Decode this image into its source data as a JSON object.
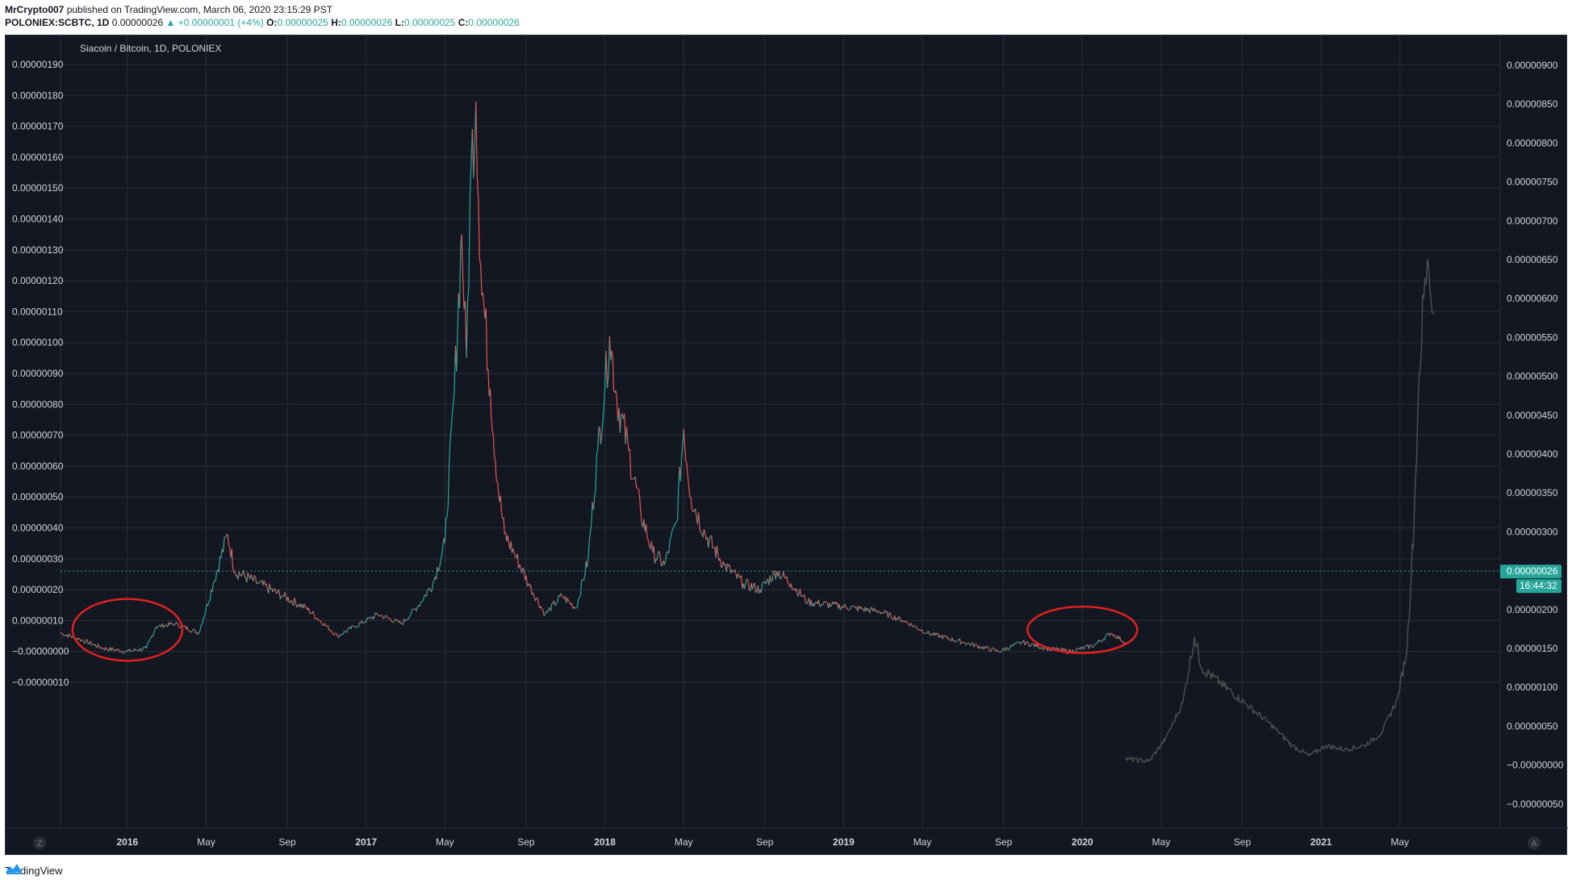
{
  "header": {
    "author": "MrCrypto007",
    "published": "published on TradingView.com, March 06, 2020 23:15:29 PST",
    "symbol": "POLONIEX:SCBTC, 1D",
    "last": "0.00000026",
    "change": "▲ +0.00000001 (+4%)",
    "o_label": "O:",
    "o_val": "0.00000025",
    "h_label": "H:",
    "h_val": "0.00000026",
    "l_label": "L:",
    "l_val": "0.00000025",
    "c_label": "C:",
    "c_val": "0.00000026"
  },
  "footer": {
    "brand": "TradingView",
    "logo_icon": "tradingview-logo-icon"
  },
  "corner_left": "Z",
  "corner_right": "A",
  "price_label": "0.00000026",
  "countdown_label": "16:44:32",
  "colors": {
    "bg": "#131722",
    "grid": "#2a2e39",
    "up": "#26a69a",
    "down": "#ef5350",
    "projection": "#4d4d4d",
    "circle": "#e0201e",
    "text": "#d1d4dc"
  },
  "chart_data": {
    "type": "line",
    "title": "Siacoin / Bitcoin, 1D, POLONIEX",
    "left_axis": {
      "ylim": [
        -1.5e-07,
        1.95e-06
      ],
      "ticks": [
        "0.00000190",
        "0.00000180",
        "0.00000170",
        "0.00000160",
        "0.00000150",
        "0.00000140",
        "0.00000130",
        "0.00000120",
        "0.00000110",
        "0.00000100",
        "0.00000090",
        "0.00000080",
        "0.00000070",
        "0.00000060",
        "0.00000050",
        "0.00000040",
        "0.00000030",
        "0.00000020",
        "0.00000010",
        "−0.00000000",
        "−0.00000010"
      ],
      "tick_values": [
        1.9,
        1.8,
        1.7,
        1.6,
        1.5,
        1.4,
        1.3,
        1.2,
        1.1,
        1.0,
        0.9,
        0.8,
        0.7,
        0.6,
        0.5,
        0.4,
        0.3,
        0.2,
        0.1,
        0.0,
        -0.1
      ]
    },
    "right_axis": {
      "ticks": [
        "0.00000900",
        "0.00000850",
        "0.00000800",
        "0.00000750",
        "0.00000700",
        "0.00000650",
        "0.00000600",
        "0.00000550",
        "0.00000500",
        "0.00000450",
        "0.00000400",
        "0.00000350",
        "0.00000300",
        "0.00000250",
        "0.00000200",
        "0.00000150",
        "0.00000100",
        "0.00000050",
        "−0.00000000",
        "−0.00000050"
      ],
      "tick_values": [
        9.0,
        8.5,
        8.0,
        7.5,
        7.0,
        6.5,
        6.0,
        5.5,
        5.0,
        4.5,
        4.0,
        3.5,
        3.0,
        2.5,
        2.0,
        1.5,
        1.0,
        0.5,
        0.0,
        -0.5
      ]
    },
    "x_axis": {
      "xlim": [
        2015.72,
        2021.75
      ],
      "labels": [
        {
          "text": "2016",
          "x": 2016.0,
          "year": true
        },
        {
          "text": "May",
          "x": 2016.33
        },
        {
          "text": "Sep",
          "x": 2016.67
        },
        {
          "text": "2017",
          "x": 2017.0,
          "year": true
        },
        {
          "text": "May",
          "x": 2017.33
        },
        {
          "text": "Sep",
          "x": 2017.67
        },
        {
          "text": "2018",
          "x": 2018.0,
          "year": true
        },
        {
          "text": "May",
          "x": 2018.33
        },
        {
          "text": "Sep",
          "x": 2018.67
        },
        {
          "text": "2019",
          "x": 2019.0,
          "year": true
        },
        {
          "text": "May",
          "x": 2019.33
        },
        {
          "text": "Sep",
          "x": 2019.67
        },
        {
          "text": "2020",
          "x": 2020.0,
          "year": true
        },
        {
          "text": "May",
          "x": 2020.33
        },
        {
          "text": "Sep",
          "x": 2020.67
        },
        {
          "text": "2021",
          "x": 2021.0,
          "year": true
        },
        {
          "text": "May",
          "x": 2021.33
        }
      ]
    },
    "current_price": 0.26,
    "series": [
      {
        "values_unit": "1e-6 BTC",
        "points": [
          [
            2015.72,
            0.06
          ],
          [
            2015.8,
            0.04
          ],
          [
            2015.9,
            0.01
          ],
          [
            2016.0,
            0.0
          ],
          [
            2016.08,
            0.01
          ],
          [
            2016.12,
            0.08
          ],
          [
            2016.2,
            0.09
          ],
          [
            2016.3,
            0.06
          ],
          [
            2016.36,
            0.22
          ],
          [
            2016.42,
            0.38
          ],
          [
            2016.45,
            0.26
          ],
          [
            2016.55,
            0.22
          ],
          [
            2016.65,
            0.18
          ],
          [
            2016.75,
            0.14
          ],
          [
            2016.88,
            0.05
          ],
          [
            2016.95,
            0.08
          ],
          [
            2017.05,
            0.12
          ],
          [
            2017.15,
            0.09
          ],
          [
            2017.22,
            0.15
          ],
          [
            2017.28,
            0.22
          ],
          [
            2017.33,
            0.35
          ],
          [
            2017.37,
            0.85
          ],
          [
            2017.4,
            1.35
          ],
          [
            2017.42,
            0.95
          ],
          [
            2017.44,
            1.58
          ],
          [
            2017.46,
            1.78
          ],
          [
            2017.48,
            1.25
          ],
          [
            2017.52,
            0.85
          ],
          [
            2017.55,
            0.55
          ],
          [
            2017.58,
            0.38
          ],
          [
            2017.62,
            0.32
          ],
          [
            2017.68,
            0.22
          ],
          [
            2017.75,
            0.12
          ],
          [
            2017.82,
            0.18
          ],
          [
            2017.88,
            0.14
          ],
          [
            2017.93,
            0.3
          ],
          [
            2017.97,
            0.65
          ],
          [
            2018.0,
            0.85
          ],
          [
            2018.02,
            1.02
          ],
          [
            2018.05,
            0.82
          ],
          [
            2018.1,
            0.65
          ],
          [
            2018.15,
            0.45
          ],
          [
            2018.2,
            0.32
          ],
          [
            2018.25,
            0.28
          ],
          [
            2018.3,
            0.42
          ],
          [
            2018.33,
            0.72
          ],
          [
            2018.36,
            0.5
          ],
          [
            2018.42,
            0.38
          ],
          [
            2018.5,
            0.28
          ],
          [
            2018.58,
            0.22
          ],
          [
            2018.65,
            0.2
          ],
          [
            2018.72,
            0.26
          ],
          [
            2018.78,
            0.22
          ],
          [
            2018.85,
            0.16
          ],
          [
            2018.95,
            0.15
          ],
          [
            2019.05,
            0.14
          ],
          [
            2019.15,
            0.13
          ],
          [
            2019.25,
            0.1
          ],
          [
            2019.35,
            0.06
          ],
          [
            2019.5,
            0.03
          ],
          [
            2019.65,
            0.0
          ],
          [
            2019.75,
            0.03
          ],
          [
            2019.85,
            0.01
          ],
          [
            2019.95,
            0.0
          ],
          [
            2020.05,
            0.02
          ],
          [
            2020.12,
            0.06
          ],
          [
            2020.18,
            0.03
          ]
        ],
        "up_color": "#26a69a",
        "down_color": "#ef5350"
      },
      {
        "values_unit": "1e-5 BTC (right axis, fractal projection)",
        "points": [
          [
            2020.18,
            0.08
          ],
          [
            2020.28,
            0.05
          ],
          [
            2020.35,
            0.35
          ],
          [
            2020.42,
            0.8
          ],
          [
            2020.47,
            1.65
          ],
          [
            2020.5,
            1.25
          ],
          [
            2020.58,
            1.05
          ],
          [
            2020.68,
            0.8
          ],
          [
            2020.78,
            0.55
          ],
          [
            2020.88,
            0.25
          ],
          [
            2020.95,
            0.12
          ],
          [
            2021.02,
            0.25
          ],
          [
            2021.1,
            0.2
          ],
          [
            2021.18,
            0.25
          ],
          [
            2021.25,
            0.4
          ],
          [
            2021.32,
            0.85
          ],
          [
            2021.36,
            1.5
          ],
          [
            2021.39,
            3.2
          ],
          [
            2021.41,
            5.0
          ],
          [
            2021.43,
            6.0
          ],
          [
            2021.45,
            6.45
          ],
          [
            2021.47,
            5.8
          ]
        ],
        "color": "#4d4d4d"
      }
    ],
    "annotations": [
      {
        "type": "ellipse",
        "cx": 2016.0,
        "cy": 0.07,
        "rx_years": 0.23,
        "ry": 0.1,
        "color": "#e0201e"
      },
      {
        "type": "ellipse",
        "cx": 2020.0,
        "cy": 0.07,
        "rx_years": 0.23,
        "ry": 0.075,
        "color": "#e0201e"
      }
    ]
  }
}
